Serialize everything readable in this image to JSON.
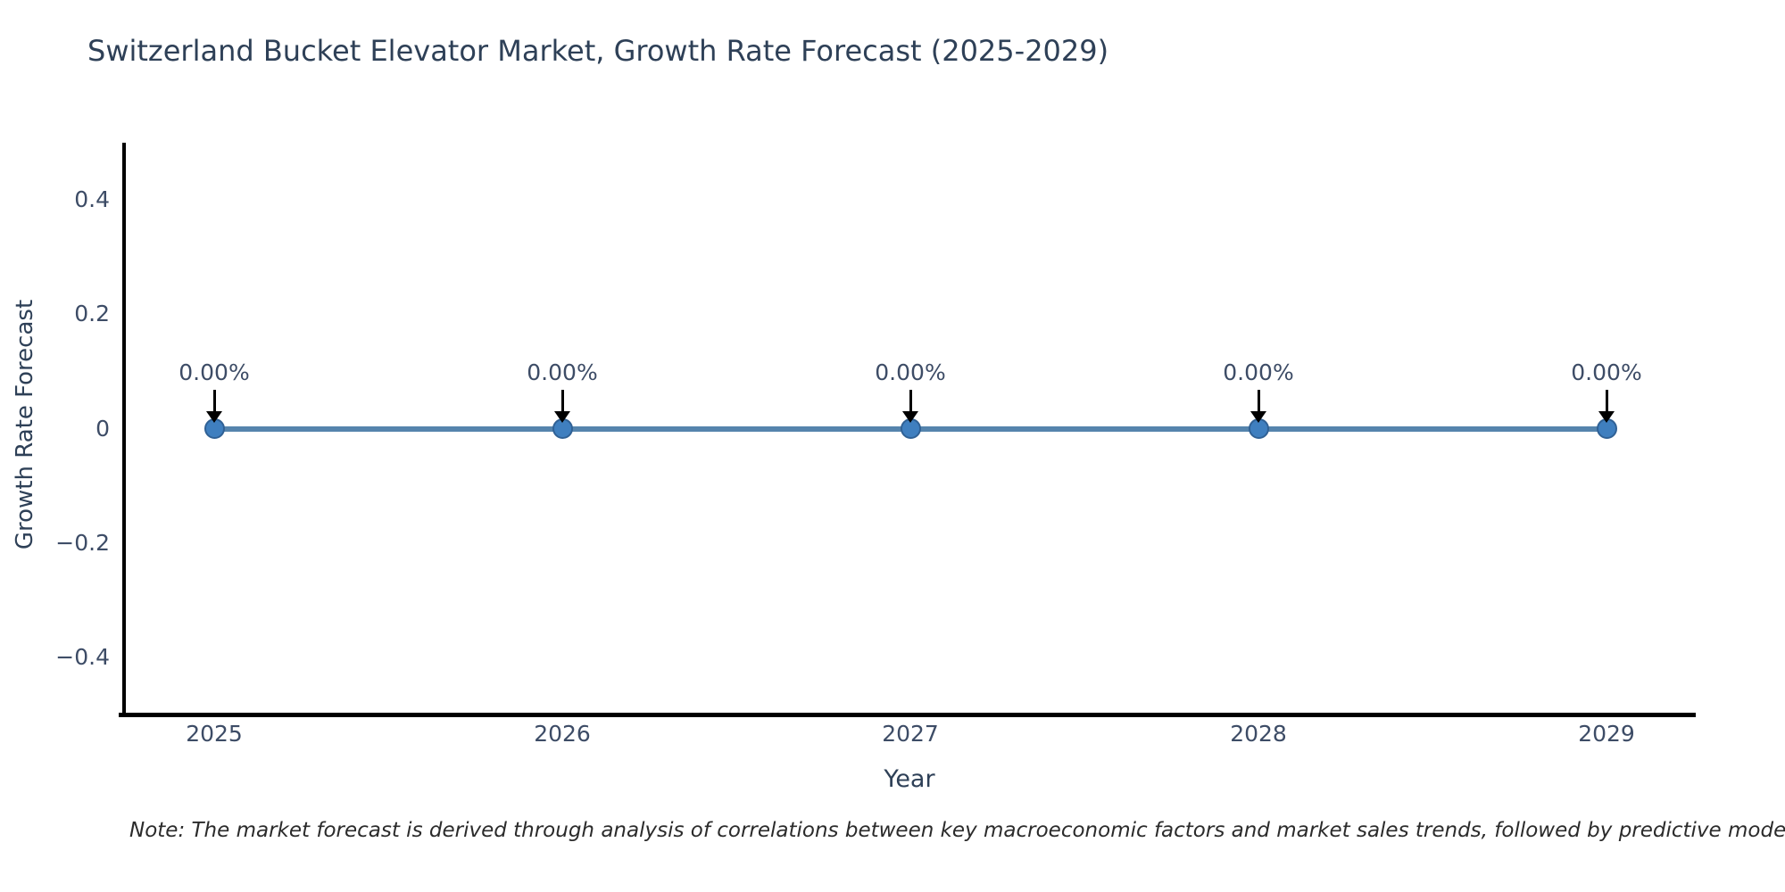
{
  "page": {
    "background": "#ffffff"
  },
  "chart_data": {
    "type": "line",
    "title": "Switzerland Bucket Elevator Market, Growth Rate Forecast (2025-2029)",
    "xlabel": "Year",
    "ylabel": "Growth Rate Forecast",
    "categories": [
      "2025",
      "2026",
      "2027",
      "2028",
      "2029"
    ],
    "series": [
      {
        "name": "Growth Rate Forecast",
        "values": [
          0,
          0,
          0,
          0,
          0
        ]
      }
    ],
    "point_labels": [
      "0.00%",
      "0.00%",
      "0.00%",
      "0.00%",
      "0.00%"
    ],
    "ylim": [
      -0.5,
      0.5
    ],
    "yticks": [
      {
        "value": 0.4,
        "label": "0.4"
      },
      {
        "value": 0.2,
        "label": "0.2"
      },
      {
        "value": 0,
        "label": "0"
      },
      {
        "value": -0.2,
        "label": "−0.2"
      },
      {
        "value": -0.4,
        "label": "−0.4"
      }
    ],
    "grid": false,
    "legend": false,
    "annotation_style": "value label with downward black arrow above each data point"
  },
  "footnote": "Note: The market forecast is derived through analysis of correlations between key macroeconomic factors and market sales trends, followed by predictive modeling to project future sa",
  "colors": {
    "title-color": "#2e4057",
    "axis-text": "#3d4c66",
    "note-color": "#2b2b2b",
    "spine": "#000000",
    "line": "#5584ad",
    "marker": "#3f7fbf",
    "marker-edge": "#306195",
    "arrow": "#000000",
    "bg": "#ffffff"
  }
}
